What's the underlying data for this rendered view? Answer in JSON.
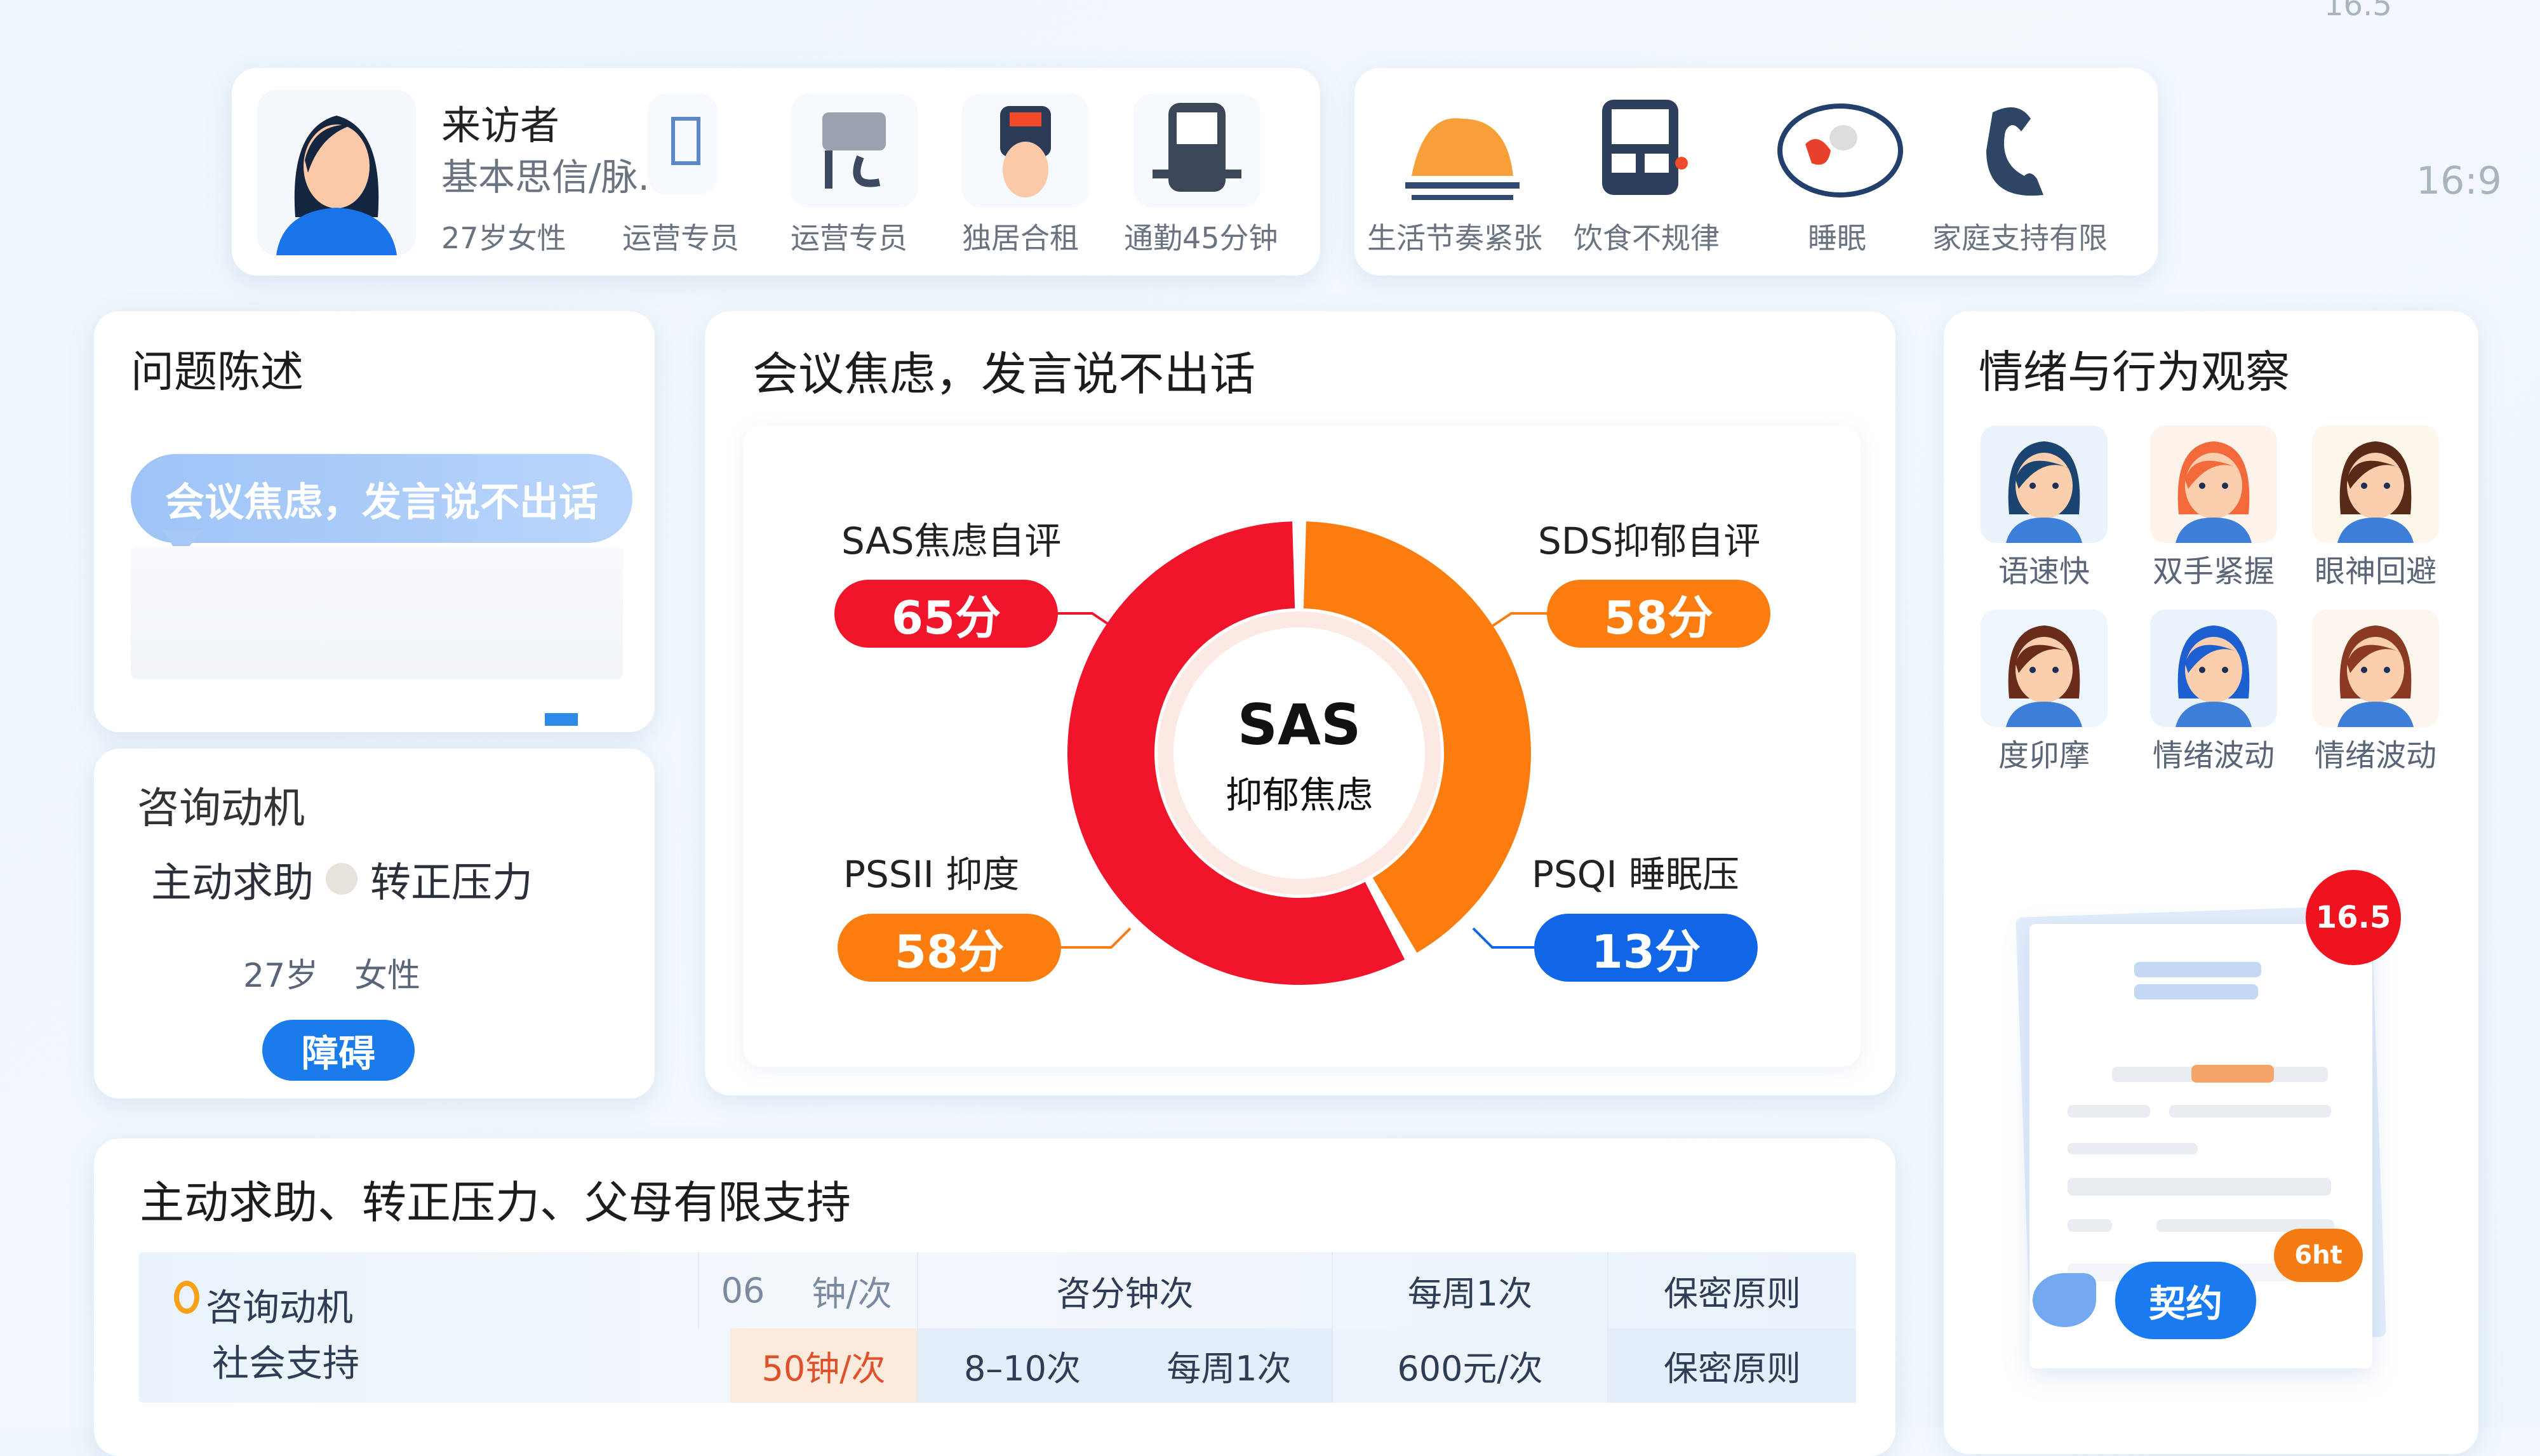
{
  "corner": {
    "top_value": "16.5",
    "ratio": "16:9"
  },
  "profile": {
    "title": "来访者",
    "subtitle": "基本思信/脉.",
    "items": [
      {
        "label": "27岁女性",
        "icon": "avatar-woman-icon"
      },
      {
        "label": "运营专员",
        "icon": "document-icon"
      },
      {
        "label": "运营专员",
        "icon": "desk-icon"
      },
      {
        "label": "独居合租",
        "icon": "person-cap-icon"
      },
      {
        "label": "通勤45分钟",
        "icon": "bus-icon"
      }
    ]
  },
  "lifestyle": {
    "items": [
      {
        "label": "生活节奏紧张",
        "icon": "sunrise-icon"
      },
      {
        "label": "饮食不规律",
        "icon": "bus-icon"
      },
      {
        "label": "睡眠",
        "icon": "plate-icon"
      },
      {
        "label": "家庭支持有限",
        "icon": "phone-icon"
      }
    ]
  },
  "problem": {
    "title": "问题陈述",
    "quote": "会议焦虑，发言说不出话"
  },
  "motive": {
    "title": "咨询动机",
    "line": "主动求助",
    "line2": "转正压力",
    "meta_age": "27岁",
    "meta_gender": "女性",
    "tag": "障碍"
  },
  "assessment": {
    "title": "会议焦虑，发言说不出话",
    "center_line1": "SAS",
    "center_line2": "抑郁焦虑",
    "colors": {
      "red": "#f0152a",
      "orange": "#fb7d10",
      "blue": "#1166e8"
    },
    "scales": [
      {
        "name": "SAS焦虑自评",
        "score": "65分",
        "color": "#f0152a"
      },
      {
        "name": "SDS抑郁自评",
        "score": "58分",
        "color": "#fb7d10"
      },
      {
        "name": "PSSII 抑度",
        "score": "58分",
        "color": "#fb7d10"
      },
      {
        "name": "PSQI 睡眠压",
        "score": "13分",
        "color": "#1166e8"
      }
    ],
    "donut_segments": [
      {
        "name": "orange",
        "fraction": 0.42,
        "color": "#fb7d10"
      },
      {
        "name": "red",
        "fraction": 0.58,
        "color": "#f0152a"
      }
    ]
  },
  "observation": {
    "title": "情绪与行为观察",
    "items": [
      {
        "label": "语速快",
        "hair": "#1c4470",
        "bg": "#eaf3fc"
      },
      {
        "label": "双手紧握",
        "hair": "#f26a3c",
        "bg": "#fdf3ea"
      },
      {
        "label": "眼神回避",
        "hair": "#5a2a18",
        "bg": "#fdf6ea"
      },
      {
        "label": "度卯摩",
        "hair": "#6a2c1a",
        "bg": "#eef5fc"
      },
      {
        "label": "情绪波动",
        "hair": "#1b5fd0",
        "bg": "#eaf2fc"
      },
      {
        "label": "情绪波动",
        "hair": "#8a3a22",
        "bg": "#fdf6ee"
      }
    ],
    "contract": {
      "badge": "16.5",
      "tag": "6ht",
      "button": "契约"
    }
  },
  "plan": {
    "title": "主动求助、转正压力、父母有限支持",
    "row_labels": [
      "咨询动机",
      "社会支持"
    ],
    "header": [
      "06",
      "钟/次",
      "咨分钟次",
      "每周1次",
      "保密原则"
    ],
    "row": [
      "50钟/次",
      "8–10次",
      "每周1次",
      "600元/次",
      "保密原则"
    ]
  }
}
